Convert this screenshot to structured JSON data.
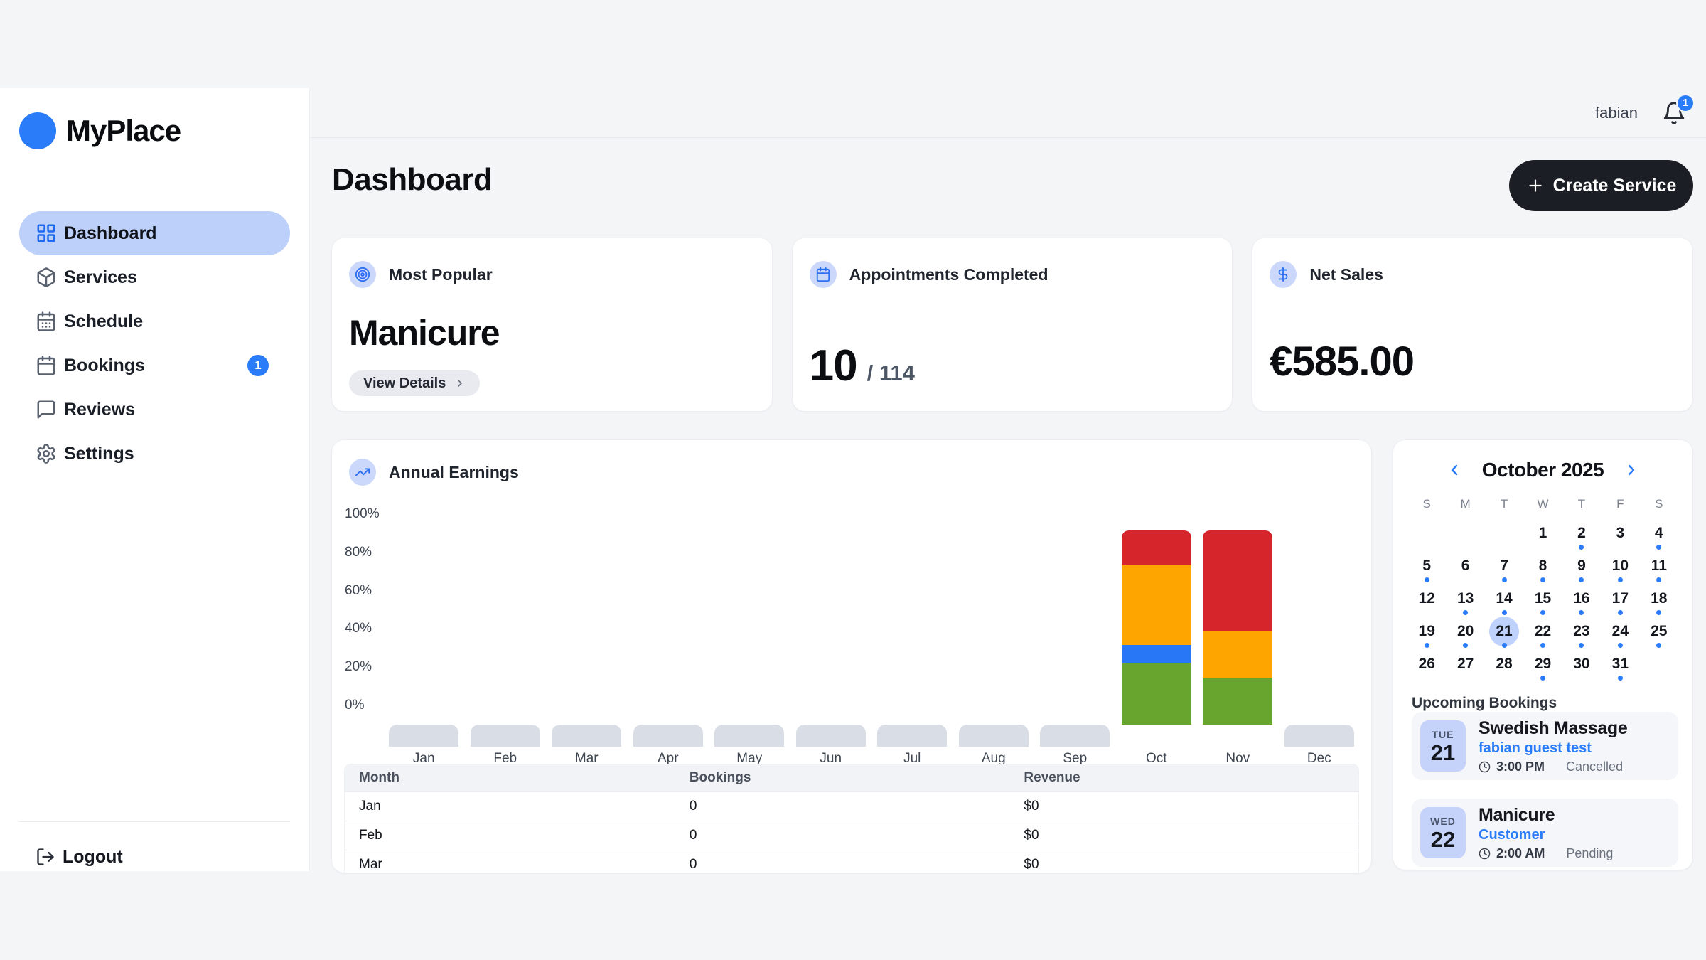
{
  "colors": {
    "accent": "#2B7CF8",
    "chart_green": "#67A52F",
    "chart_blue": "#2777F6",
    "chart_orange": "#FEA500",
    "chart_red": "#D6252B"
  },
  "sidebar": {
    "logo_text": "MyPlace",
    "items": [
      {
        "id": "dashboard",
        "label": "Dashboard",
        "icon": "layout-grid",
        "active": true,
        "badge": null
      },
      {
        "id": "services",
        "label": "Services",
        "icon": "package",
        "active": false,
        "badge": null
      },
      {
        "id": "schedule",
        "label": "Schedule",
        "icon": "calendar-days",
        "active": false,
        "badge": null
      },
      {
        "id": "bookings",
        "label": "Bookings",
        "icon": "calendar",
        "active": false,
        "badge": "1"
      },
      {
        "id": "reviews",
        "label": "Reviews",
        "icon": "message-square",
        "active": false,
        "badge": null
      },
      {
        "id": "settings",
        "label": "Settings",
        "icon": "settings",
        "active": false,
        "badge": null
      }
    ],
    "logout_label": "Logout"
  },
  "topbar": {
    "username": "fabian",
    "notification_count": "1"
  },
  "page": {
    "title": "Dashboard",
    "create_button_label": "Create Service"
  },
  "cards": {
    "most_popular": {
      "label": "Most Popular",
      "value": "Manicure",
      "button_label": "View Details"
    },
    "appointments": {
      "label": "Appointments Completed",
      "completed": "10",
      "total_display": "/ 114"
    },
    "net_sales": {
      "label": "Net Sales",
      "value": "€585.00"
    }
  },
  "earnings": {
    "title": "Annual Earnings",
    "y_ticks": [
      "100%",
      "80%",
      "60%",
      "40%",
      "20%",
      "0%"
    ]
  },
  "chart_data": {
    "type": "bar",
    "stacked": true,
    "unit": "percent",
    "title": "Annual Earnings",
    "categories": [
      "Jan",
      "Feb",
      "Mar",
      "Apr",
      "May",
      "Jun",
      "Jul",
      "Aug",
      "Sep",
      "Oct",
      "Nov",
      "Dec"
    ],
    "series": [
      {
        "name": "green",
        "color": "#67A52F",
        "values": [
          0,
          0,
          0,
          0,
          0,
          0,
          0,
          0,
          0,
          32,
          24,
          0
        ]
      },
      {
        "name": "blue",
        "color": "#2777F6",
        "values": [
          0,
          0,
          0,
          0,
          0,
          0,
          0,
          0,
          0,
          9,
          0,
          0
        ]
      },
      {
        "name": "orange",
        "color": "#FEA500",
        "values": [
          0,
          0,
          0,
          0,
          0,
          0,
          0,
          0,
          0,
          41,
          24,
          0
        ]
      },
      {
        "name": "red",
        "color": "#D6252B",
        "values": [
          0,
          0,
          0,
          0,
          0,
          0,
          0,
          0,
          0,
          18,
          52,
          0
        ]
      }
    ],
    "empty_months": [
      "Jan",
      "Feb",
      "Mar",
      "Apr",
      "May",
      "Jun",
      "Jul",
      "Aug",
      "Sep",
      "Dec"
    ],
    "xlabel": "",
    "ylabel": "",
    "ylim": [
      0,
      100
    ],
    "grid": false,
    "legend": "none"
  },
  "earnings_table": {
    "headers": [
      "Month",
      "Bookings",
      "Revenue"
    ],
    "rows": [
      [
        "Jan",
        "0",
        "$0"
      ],
      [
        "Feb",
        "0",
        "$0"
      ],
      [
        "Mar",
        "0",
        "$0"
      ]
    ]
  },
  "calendar": {
    "title": "October 2025",
    "weekdays": [
      "S",
      "M",
      "T",
      "W",
      "T",
      "F",
      "S"
    ],
    "start_offset": 3,
    "days_in_month": 31,
    "selected_day": 21,
    "dot_days": [
      2,
      4,
      5,
      7,
      8,
      9,
      10,
      11,
      13,
      14,
      15,
      16,
      17,
      18,
      19,
      20,
      21,
      22,
      23,
      24,
      25,
      29,
      31
    ]
  },
  "bookings": {
    "heading": "Upcoming Bookings",
    "items": [
      {
        "day": "TUE",
        "date": "21",
        "title": "Swedish Massage",
        "customer": "fabian guest test",
        "time": "3:00 PM",
        "status": "Cancelled"
      },
      {
        "day": "WED",
        "date": "22",
        "title": "Manicure",
        "customer": "Customer",
        "time": "2:00 AM",
        "status": "Pending"
      }
    ]
  }
}
